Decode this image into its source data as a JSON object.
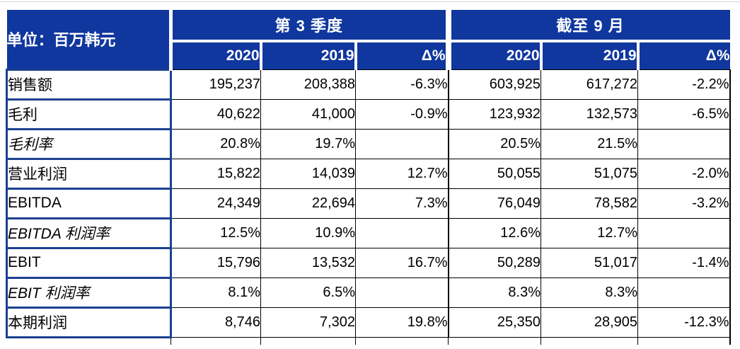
{
  "chart_data": {
    "type": "table",
    "unit_header": "单位：百万韩元",
    "column_groups": [
      {
        "title": "第 3 季度",
        "columns": [
          "2020",
          "2019",
          "Δ%"
        ]
      },
      {
        "title": "截至 9 月",
        "columns": [
          "2020",
          "2019",
          "Δ%"
        ]
      }
    ],
    "rows": [
      {
        "label": "销售额",
        "italic": false,
        "values": [
          "195,237",
          "208,388",
          "-6.3%",
          "603,925",
          "617,272",
          "-2.2%"
        ]
      },
      {
        "label": "毛利",
        "italic": false,
        "values": [
          "40,622",
          "41,000",
          "-0.9%",
          "123,932",
          "132,573",
          "-6.5%"
        ]
      },
      {
        "label": "毛利率",
        "italic": true,
        "values": [
          "20.8%",
          "19.7%",
          "",
          "20.5%",
          "21.5%",
          ""
        ]
      },
      {
        "label": "营业利润",
        "italic": false,
        "values": [
          "15,822",
          "14,039",
          "12.7%",
          "50,055",
          "51,075",
          "-2.0%"
        ]
      },
      {
        "label": "EBITDA",
        "italic": false,
        "values": [
          "24,349",
          "22,694",
          "7.3%",
          "76,049",
          "78,582",
          "-3.2%"
        ]
      },
      {
        "label": "EBITDA 利润率",
        "italic": true,
        "values": [
          "12.5%",
          "10.9%",
          "",
          "12.6%",
          "12.7%",
          ""
        ]
      },
      {
        "label": "EBIT",
        "italic": false,
        "values": [
          "15,796",
          "13,532",
          "16.7%",
          "50,289",
          "51,017",
          "-1.4%"
        ]
      },
      {
        "label": "EBIT 利润率",
        "italic": true,
        "values": [
          "8.1%",
          "6.5%",
          "",
          "8.3%",
          "8.3%",
          ""
        ]
      },
      {
        "label": "本期利润",
        "italic": false,
        "values": [
          "8,746",
          "7,302",
          "19.8%",
          "25,350",
          "28,905",
          "-12.3%"
        ]
      }
    ],
    "colors": {
      "header_bg": "#10379E",
      "box_border_blue": "#1B4191",
      "grid_line": "#000000",
      "header_text": "#FFFFFF",
      "body_text": "#000000"
    }
  }
}
